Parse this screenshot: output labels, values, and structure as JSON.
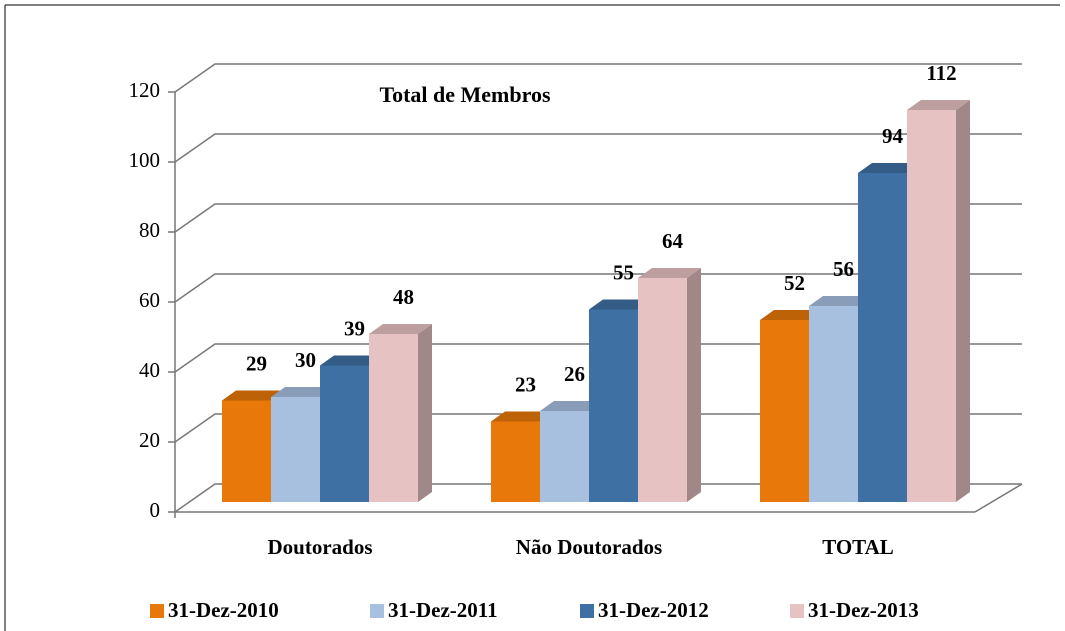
{
  "chart_data": {
    "type": "bar",
    "title": "Total de Membros",
    "categories": [
      "Doutorados",
      "Não Doutorados",
      "TOTAL"
    ],
    "series": [
      {
        "name": "31-Dez-2010",
        "color": "#e8780a",
        "values": [
          29,
          23,
          52
        ]
      },
      {
        "name": "31-Dez-2011",
        "color": "#a7c0e0",
        "values": [
          30,
          26,
          56
        ]
      },
      {
        "name": "31-Dez-2012",
        "color": "#3e70a4",
        "values": [
          39,
          55,
          94
        ]
      },
      {
        "name": "31-Dez-2013",
        "color": "#e6c2c2",
        "values": [
          48,
          64,
          112
        ]
      }
    ],
    "ylim": [
      0,
      120
    ],
    "yticks": [
      0,
      20,
      40,
      60,
      80,
      100,
      120
    ],
    "grid": true,
    "legend": "bottom"
  }
}
